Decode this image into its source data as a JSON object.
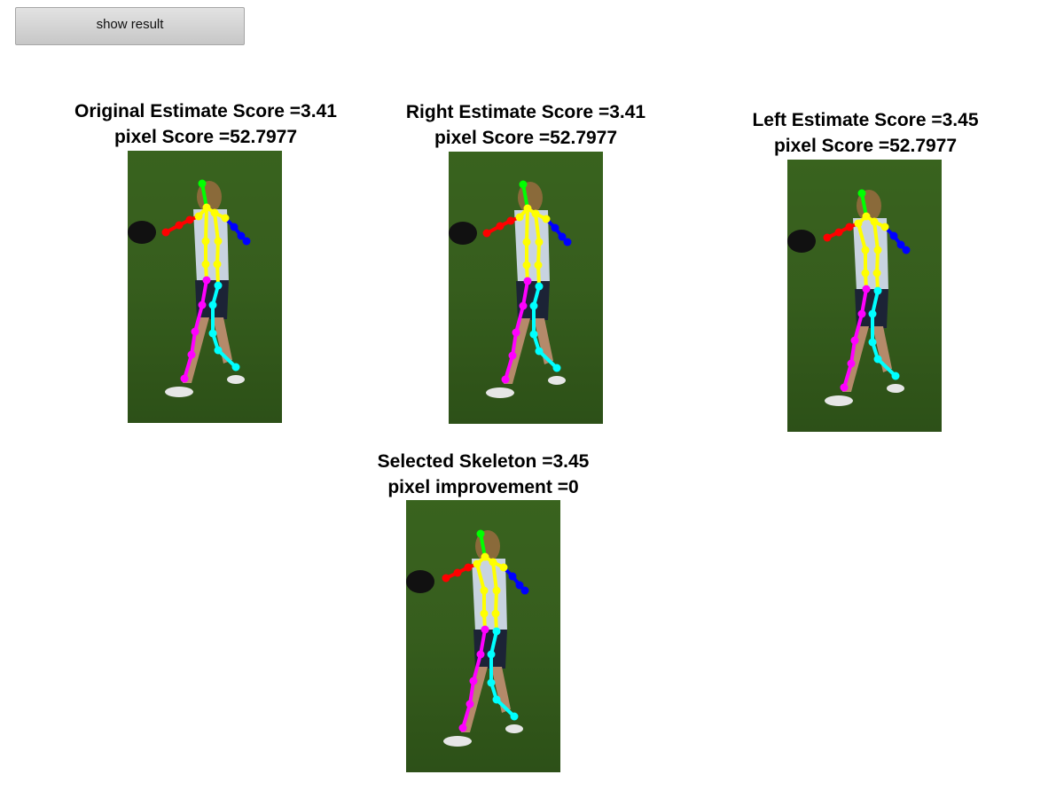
{
  "toolbar": {
    "show_result_label": "show result"
  },
  "panels": {
    "original": {
      "title_line1": "Original Estimate Score =3.41",
      "title_line2": "pixel Score =52.7977"
    },
    "right": {
      "title_line1": "Right Estimate Score =3.41",
      "title_line2": "pixel Score =52.7977"
    },
    "left": {
      "title_line1": "Left Estimate Score =3.45",
      "title_line2": "pixel Score =52.7977"
    },
    "selected": {
      "title_line1": "Selected Skeleton =3.45",
      "title_line2": "pixel improvement =0"
    }
  },
  "skeleton_colors": {
    "head": "#00ff00",
    "right_arm": "#ff0000",
    "left_arm": "#0000ff",
    "torso": "#ffff00",
    "right_leg": "#ff00ff",
    "left_leg": "#00ffff"
  },
  "background_color": "#3f6b22"
}
